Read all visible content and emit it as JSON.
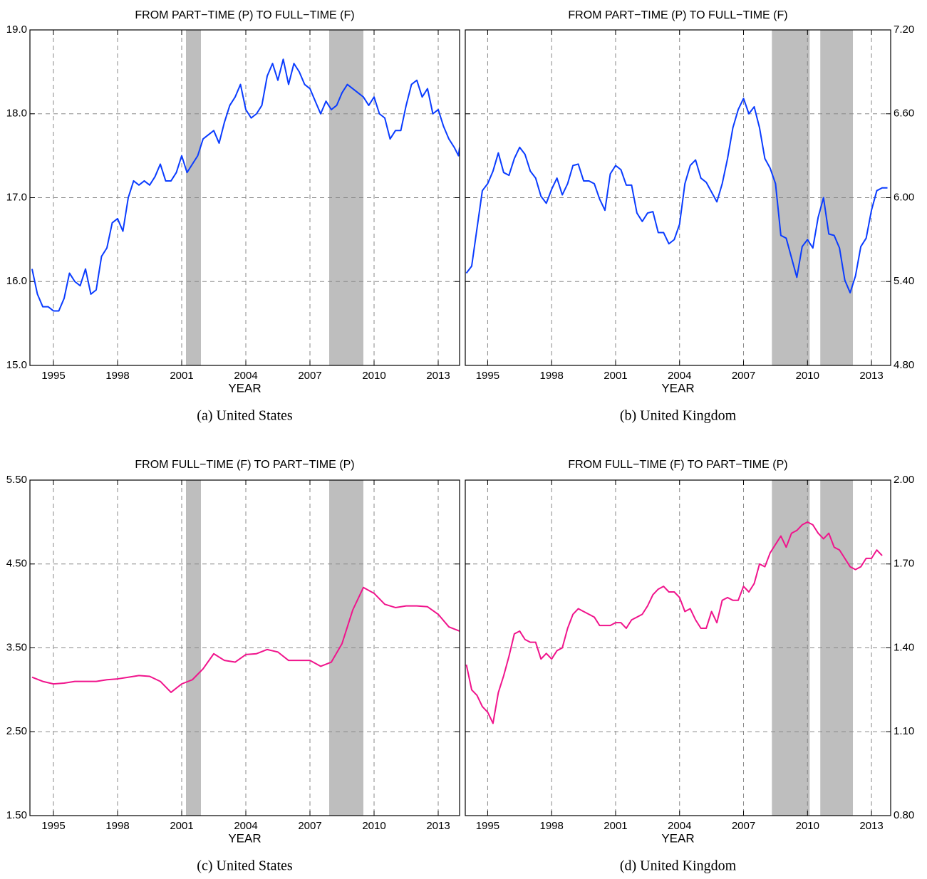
{
  "chart_data": [
    {
      "type": "line",
      "title": "FROM PART−TIME (P) TO FULL−TIME (F)",
      "caption": "(a) United States",
      "xlabel": "YEAR",
      "yaxis_side": "left",
      "grid": true,
      "xlim": [
        1993.9,
        2014.0
      ],
      "xticks": [
        1995,
        1998,
        2001,
        2004,
        2007,
        2010,
        2013
      ],
      "ylim": [
        15,
        19
      ],
      "yticks": [
        {
          "value": 15,
          "label": "15.0"
        },
        {
          "value": 16,
          "label": "16.0"
        },
        {
          "value": 17,
          "label": "17.0"
        },
        {
          "value": 18,
          "label": "18.0"
        },
        {
          "value": 19,
          "label": "19.0"
        }
      ],
      "shaded": [
        [
          2001.2,
          2001.9
        ],
        [
          2007.9,
          2009.5
        ]
      ],
      "shade_color": "#bebebe",
      "color": "#0a3cff",
      "x": [
        1994.0,
        1994.25,
        1994.5,
        1994.75,
        1995.0,
        1995.25,
        1995.5,
        1995.75,
        1996.0,
        1996.25,
        1996.5,
        1996.75,
        1997.0,
        1997.25,
        1997.5,
        1997.75,
        1998.0,
        1998.25,
        1998.5,
        1998.75,
        1999.0,
        1999.25,
        1999.5,
        1999.75,
        2000.0,
        2000.25,
        2000.5,
        2000.75,
        2001.0,
        2001.25,
        2001.5,
        2001.75,
        2002.0,
        2002.25,
        2002.5,
        2002.75,
        2003.0,
        2003.25,
        2003.5,
        2003.75,
        2004.0,
        2004.25,
        2004.5,
        2004.75,
        2005.0,
        2005.25,
        2005.5,
        2005.75,
        2006.0,
        2006.25,
        2006.5,
        2006.75,
        2007.0,
        2007.25,
        2007.5,
        2007.75,
        2008.0,
        2008.25,
        2008.5,
        2008.75,
        2009.0,
        2009.25,
        2009.5,
        2009.75,
        2010.0,
        2010.25,
        2010.5,
        2010.75,
        2011.0,
        2011.25,
        2011.5,
        2011.75,
        2012.0,
        2012.25,
        2012.5,
        2012.75,
        2013.0,
        2013.25,
        2013.5,
        2013.75,
        2013.95,
        2014.0
      ],
      "values": [
        16.15,
        15.85,
        15.7,
        15.7,
        15.65,
        15.65,
        15.8,
        16.1,
        16.0,
        15.95,
        16.15,
        15.85,
        15.9,
        16.3,
        16.4,
        16.7,
        16.75,
        16.6,
        17.0,
        17.2,
        17.15,
        17.2,
        17.15,
        17.25,
        17.4,
        17.2,
        17.2,
        17.3,
        17.5,
        17.3,
        17.4,
        17.5,
        17.7,
        17.75,
        17.8,
        17.65,
        17.9,
        18.1,
        18.2,
        18.35,
        18.05,
        17.95,
        18.0,
        18.1,
        18.45,
        18.6,
        18.4,
        18.65,
        18.35,
        18.6,
        18.5,
        18.35,
        18.3,
        18.15,
        18.0,
        18.15,
        18.05,
        18.1,
        18.25,
        18.35,
        18.3,
        18.25,
        18.2,
        18.1,
        18.2,
        18.0,
        17.95,
        17.7,
        17.8,
        17.8,
        18.1,
        18.35,
        18.4,
        18.2,
        18.3,
        18.0,
        18.05,
        17.85,
        17.7,
        17.6,
        17.5,
        17.6
      ]
    },
    {
      "type": "line",
      "title": "FROM PART−TIME (P) TO FULL−TIME (F)",
      "caption": "(b) United Kingdom",
      "xlabel": "YEAR",
      "yaxis_side": "right",
      "grid": true,
      "xlim": [
        1993.95,
        2013.9
      ],
      "xticks": [
        1995,
        1998,
        2001,
        2004,
        2007,
        2010,
        2013
      ],
      "ylim": [
        4.8,
        7.2
      ],
      "yticks": [
        {
          "value": 4.8,
          "label": "4.80"
        },
        {
          "value": 5.4,
          "label": "5.40"
        },
        {
          "value": 6.0,
          "label": "6.00"
        },
        {
          "value": 6.6,
          "label": "6.60"
        },
        {
          "value": 7.2,
          "label": "7.20"
        }
      ],
      "shaded": [
        [
          2008.33,
          2010.1
        ],
        [
          2010.6,
          2012.13
        ]
      ],
      "shade_color": "#bebebe",
      "color": "#0a3cff",
      "x": [
        1994.0,
        1994.25,
        1994.5,
        1994.75,
        1995.0,
        1995.25,
        1995.5,
        1995.75,
        1996.0,
        1996.25,
        1996.5,
        1996.75,
        1997.0,
        1997.25,
        1997.5,
        1997.75,
        1998.0,
        1998.25,
        1998.5,
        1998.75,
        1999.0,
        1999.25,
        1999.5,
        1999.75,
        2000.0,
        2000.25,
        2000.5,
        2000.75,
        2001.0,
        2001.25,
        2001.5,
        2001.75,
        2002.0,
        2002.25,
        2002.5,
        2002.75,
        2003.0,
        2003.25,
        2003.5,
        2003.75,
        2004.0,
        2004.25,
        2004.5,
        2004.75,
        2005.0,
        2005.25,
        2005.5,
        2005.75,
        2006.0,
        2006.25,
        2006.5,
        2006.75,
        2007.0,
        2007.25,
        2007.5,
        2007.75,
        2008.0,
        2008.25,
        2008.5,
        2008.75,
        2009.0,
        2009.25,
        2009.5,
        2009.75,
        2010.0,
        2010.25,
        2010.5,
        2010.75,
        2011.0,
        2011.25,
        2011.5,
        2011.75,
        2012.0,
        2012.25,
        2012.5,
        2012.75,
        2013.0,
        2013.25,
        2013.5,
        2013.75
      ],
      "values": [
        5.46,
        5.51,
        5.78,
        6.05,
        6.1,
        6.19,
        6.32,
        6.18,
        6.16,
        6.28,
        6.36,
        6.31,
        6.19,
        6.14,
        6.01,
        5.96,
        6.06,
        6.14,
        6.02,
        6.1,
        6.23,
        6.24,
        6.12,
        6.12,
        6.1,
        5.99,
        5.91,
        6.17,
        6.23,
        6.2,
        6.09,
        6.09,
        5.89,
        5.83,
        5.89,
        5.9,
        5.75,
        5.75,
        5.67,
        5.7,
        5.81,
        6.1,
        6.23,
        6.27,
        6.14,
        6.11,
        6.04,
        5.97,
        6.1,
        6.28,
        6.5,
        6.63,
        6.71,
        6.6,
        6.65,
        6.5,
        6.28,
        6.21,
        6.1,
        5.73,
        5.71,
        5.57,
        5.43,
        5.65,
        5.7,
        5.64,
        5.86,
        6.0,
        5.74,
        5.73,
        5.64,
        5.41,
        5.32,
        5.44,
        5.65,
        5.71,
        5.91,
        6.05,
        6.07,
        6.07
      ]
    },
    {
      "type": "line",
      "title": "FROM FULL−TIME (F) TO PART−TIME (P)",
      "caption": "(c) United States",
      "xlabel": "YEAR",
      "yaxis_side": "left",
      "grid": true,
      "xlim": [
        1993.9,
        2014.0
      ],
      "xticks": [
        1995,
        1998,
        2001,
        2004,
        2007,
        2010,
        2013
      ],
      "ylim": [
        1.5,
        5.5
      ],
      "yticks": [
        {
          "value": 1.5,
          "label": "1.50"
        },
        {
          "value": 2.5,
          "label": "2.50"
        },
        {
          "value": 3.5,
          "label": "3.50"
        },
        {
          "value": 4.5,
          "label": "4.50"
        },
        {
          "value": 5.5,
          "label": "5.50"
        }
      ],
      "shaded": [
        [
          2001.2,
          2001.9
        ],
        [
          2007.9,
          2009.5
        ]
      ],
      "shade_color": "#bebebe",
      "color": "#f0148c",
      "x": [
        1994.0,
        1994.5,
        1995.0,
        1995.5,
        1996.0,
        1996.5,
        1997.0,
        1997.5,
        1998.0,
        1998.5,
        1999.0,
        1999.5,
        2000.0,
        2000.5,
        2001.0,
        2001.5,
        2002.0,
        2002.5,
        2003.0,
        2003.5,
        2004.0,
        2004.5,
        2005.0,
        2005.5,
        2006.0,
        2006.5,
        2007.0,
        2007.5,
        2008.0,
        2008.5,
        2009.0,
        2009.5,
        2010.0,
        2010.5,
        2011.0,
        2011.5,
        2012.0,
        2012.5,
        2013.0,
        2013.5,
        2014.0
      ],
      "values": [
        3.15,
        3.1,
        3.07,
        3.08,
        3.1,
        3.1,
        3.1,
        3.12,
        3.13,
        3.15,
        3.17,
        3.16,
        3.1,
        2.97,
        3.07,
        3.12,
        3.25,
        3.43,
        3.35,
        3.33,
        3.42,
        3.43,
        3.48,
        3.45,
        3.35,
        3.35,
        3.35,
        3.28,
        3.33,
        3.55,
        3.95,
        4.22,
        4.15,
        4.02,
        3.98,
        4.0,
        4.0,
        3.99,
        3.9,
        3.75,
        3.7
      ]
    },
    {
      "type": "line",
      "title": "FROM FULL−TIME (F) TO PART−TIME (P)",
      "caption": "(d) United Kingdom",
      "xlabel": "YEAR",
      "yaxis_side": "right",
      "grid": true,
      "xlim": [
        1993.95,
        2013.9
      ],
      "xticks": [
        1995,
        1998,
        2001,
        2004,
        2007,
        2010,
        2013
      ],
      "ylim": [
        0.8,
        2.0
      ],
      "yticks": [
        {
          "value": 0.8,
          "label": "0.80"
        },
        {
          "value": 1.1,
          "label": "1.10"
        },
        {
          "value": 1.4,
          "label": "1.40"
        },
        {
          "value": 1.7,
          "label": "1.70"
        },
        {
          "value": 2.0,
          "label": "2.00"
        }
      ],
      "shaded": [
        [
          2008.33,
          2010.1
        ],
        [
          2010.6,
          2012.13
        ]
      ],
      "shade_color": "#bebebe",
      "color": "#f0148c",
      "x": [
        1994.0,
        1994.25,
        1994.5,
        1994.75,
        1995.0,
        1995.25,
        1995.5,
        1995.75,
        1996.0,
        1996.25,
        1996.5,
        1996.75,
        1997.0,
        1997.25,
        1997.5,
        1997.75,
        1998.0,
        1998.25,
        1998.5,
        1998.75,
        1999.0,
        1999.25,
        1999.5,
        1999.75,
        2000.0,
        2000.25,
        2000.5,
        2000.75,
        2001.0,
        2001.25,
        2001.5,
        2001.75,
        2002.0,
        2002.25,
        2002.5,
        2002.75,
        2003.0,
        2003.25,
        2003.5,
        2003.75,
        2004.0,
        2004.25,
        2004.5,
        2004.75,
        2005.0,
        2005.25,
        2005.5,
        2005.75,
        2006.0,
        2006.25,
        2006.5,
        2006.75,
        2007.0,
        2007.25,
        2007.5,
        2007.75,
        2008.0,
        2008.25,
        2008.5,
        2008.75,
        2009.0,
        2009.25,
        2009.5,
        2009.75,
        2010.0,
        2010.25,
        2010.5,
        2010.75,
        2011.0,
        2011.25,
        2011.5,
        2011.75,
        2012.0,
        2012.25,
        2012.5,
        2012.75,
        2013.0,
        2013.25,
        2013.5
      ],
      "values": [
        1.34,
        1.25,
        1.23,
        1.19,
        1.17,
        1.13,
        1.24,
        1.3,
        1.37,
        1.45,
        1.46,
        1.43,
        1.42,
        1.42,
        1.36,
        1.38,
        1.36,
        1.39,
        1.4,
        1.47,
        1.52,
        1.54,
        1.53,
        1.52,
        1.51,
        1.48,
        1.48,
        1.48,
        1.49,
        1.49,
        1.47,
        1.5,
        1.51,
        1.52,
        1.55,
        1.59,
        1.61,
        1.62,
        1.6,
        1.6,
        1.58,
        1.53,
        1.54,
        1.5,
        1.47,
        1.47,
        1.53,
        1.49,
        1.57,
        1.58,
        1.57,
        1.57,
        1.62,
        1.6,
        1.63,
        1.7,
        1.69,
        1.74,
        1.77,
        1.8,
        1.76,
        1.81,
        1.82,
        1.84,
        1.85,
        1.84,
        1.81,
        1.79,
        1.81,
        1.76,
        1.75,
        1.72,
        1.69,
        1.68,
        1.69,
        1.72,
        1.72,
        1.75,
        1.73
      ]
    }
  ]
}
